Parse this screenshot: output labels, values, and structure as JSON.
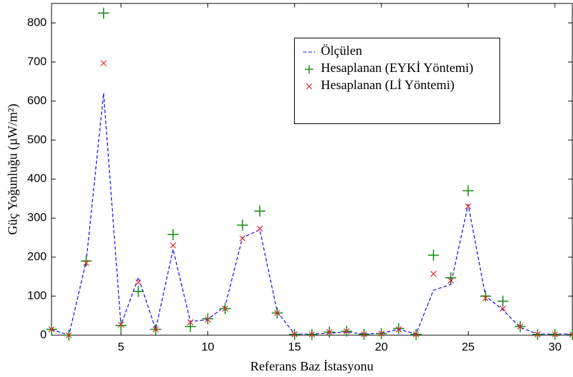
{
  "chart_data": {
    "type": "line-scatter",
    "xlabel": "Referans Baz İstasyonu",
    "ylabel": "Güç Yoğunluğu (µW/m²)",
    "x": [
      1,
      2,
      3,
      4,
      5,
      6,
      7,
      8,
      9,
      10,
      11,
      12,
      13,
      14,
      15,
      16,
      17,
      18,
      19,
      20,
      21,
      22,
      23,
      24,
      25,
      26,
      27,
      28,
      29,
      30,
      31
    ],
    "series": [
      {
        "name": "Ölçülen",
        "color": "#0000ff",
        "style": "dashed-line",
        "values": [
          15,
          0,
          190,
          620,
          25,
          148,
          15,
          220,
          35,
          40,
          75,
          250,
          270,
          60,
          3,
          3,
          5,
          8,
          3,
          5,
          15,
          3,
          115,
          130,
          335,
          100,
          65,
          20,
          3,
          3,
          3
        ]
      },
      {
        "name": "Hesaplanan (EYKİ Yöntemi)",
        "color": "#1a8a1a",
        "style": "plus",
        "values": [
          15,
          0,
          190,
          825,
          25,
          112,
          15,
          258,
          22,
          42,
          68,
          282,
          318,
          57,
          2,
          2,
          8,
          10,
          2,
          4,
          17,
          2,
          205,
          147,
          370,
          100,
          87,
          22,
          2,
          2,
          2
        ]
      },
      {
        "name": "Hesaplanan (Lİ Yöntemi)",
        "color": "#e8202a",
        "style": "cross",
        "values": [
          15,
          0,
          185,
          697,
          27,
          135,
          15,
          230,
          33,
          40,
          68,
          248,
          273,
          57,
          2,
          2,
          8,
          10,
          2,
          4,
          15,
          2,
          157,
          140,
          330,
          95,
          68,
          22,
          2,
          2,
          2
        ]
      }
    ],
    "xlim": [
      1,
      31
    ],
    "xticks": [
      5,
      10,
      15,
      20,
      25,
      30
    ],
    "ylim": [
      0,
      850
    ],
    "yticks": [
      0,
      100,
      200,
      300,
      400,
      500,
      600,
      700,
      800
    ]
  }
}
